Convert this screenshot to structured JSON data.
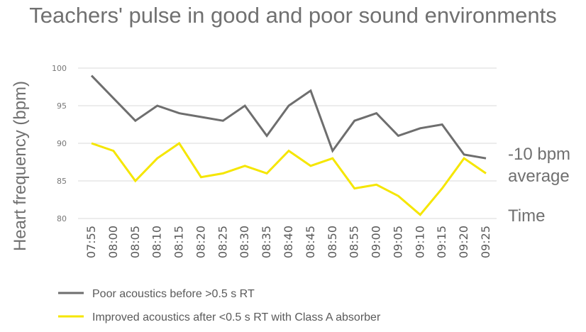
{
  "chart_data": {
    "type": "line",
    "title": "Teachers' pulse in good and poor sound environments",
    "ylabel": "Heart frequency (bpm)",
    "xlabel": "",
    "ylim": [
      80,
      100
    ],
    "yticks": [
      80,
      85,
      90,
      95,
      100
    ],
    "grid": true,
    "categories": [
      "07:55",
      "08:00",
      "08:05",
      "08:10",
      "08:15",
      "08:20",
      "08:25",
      "08:30",
      "08:35",
      "08:40",
      "08:45",
      "08:50",
      "08:55",
      "09:00",
      "09:05",
      "09:10",
      "09:15",
      "09:20",
      "09:25"
    ],
    "series": [
      {
        "name": "Poor acoustics before >0.5 s  RT",
        "color": "#6e6e6e",
        "values": [
          99,
          96,
          93,
          95,
          94,
          93.5,
          93,
          95,
          91,
          95,
          97,
          89,
          93,
          94,
          91,
          92,
          92.5,
          88.5,
          88
        ]
      },
      {
        "name": "Improved acoustics after <0.5 s RT with Class A absorber",
        "color": "#f5e600",
        "values": [
          90,
          89,
          85,
          88,
          90,
          85.5,
          86,
          87,
          86,
          89,
          87,
          88,
          84,
          84.5,
          83,
          80.5,
          84,
          88,
          86
        ]
      }
    ],
    "annotations": [
      "-10 bpm",
      "average",
      "Time"
    ],
    "legend_position": "bottom"
  }
}
